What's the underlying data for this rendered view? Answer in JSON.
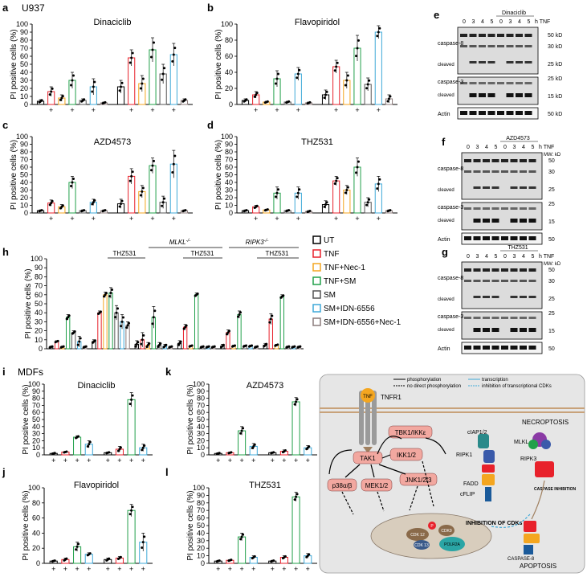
{
  "figure": {
    "panel_letters": [
      "a",
      "b",
      "c",
      "d",
      "e",
      "f",
      "g",
      "h",
      "i",
      "j",
      "k",
      "l",
      "m"
    ],
    "cell_line_label": "U937",
    "mdf_label": "MDFs",
    "plus": "+",
    "ylabel": "PI positive cells (%)",
    "colors": {
      "UT": "#000000",
      "TNF": "#e8212b",
      "TNF+Nec-1": "#f4a620",
      "TNF+SM": "#21a04a",
      "SM": "#555555",
      "SM+IDN-6556": "#3fa9d8",
      "SM+IDN-6556+Nec-1": "#8c7b7b"
    },
    "legend": [
      "UT",
      "TNF",
      "TNF+Nec-1",
      "TNF+SM",
      "SM",
      "SM+IDN-6556",
      "SM+IDN-6556+Nec-1"
    ],
    "h_labels": {
      "thz": "THZ531",
      "mlkl": "MLKL",
      "ripk3": "RIPK3",
      "ko": "-/-"
    }
  },
  "chart_data": [
    {
      "id": "a",
      "type": "bar",
      "title": "Dinaciclib",
      "ylabel": "PI positive cells (%)",
      "ylim": [
        0,
        100
      ],
      "yticks": [
        0,
        10,
        20,
        30,
        40,
        50,
        60,
        70,
        80,
        90,
        100
      ],
      "categories": [
        "UT",
        "TNF",
        "TNF+Nec-1",
        "TNF+SM",
        "SM",
        "SM+IDN-6556",
        "SM+IDN-6556+Nec-1"
      ],
      "groups": [
        {
          "values": [
            4,
            16,
            8,
            30,
            5,
            22,
            2
          ],
          "err": [
            2,
            6,
            4,
            10,
            2,
            10,
            1
          ]
        },
        {
          "values": [
            22,
            58,
            26,
            68,
            38,
            62,
            5
          ],
          "err": [
            8,
            10,
            10,
            15,
            12,
            14,
            2
          ]
        }
      ]
    },
    {
      "id": "b",
      "type": "bar",
      "title": "Flavopiridol",
      "ylabel": "PI positive cells (%)",
      "ylim": [
        0,
        100
      ],
      "yticks": [
        0,
        20,
        40,
        60,
        80,
        100
      ],
      "categories": [
        "UT",
        "TNF",
        "TNF+Nec-1",
        "TNF+SM",
        "SM",
        "SM+IDN-6556",
        "SM+IDN-6556+Nec-1"
      ],
      "groups": [
        {
          "values": [
            5,
            12,
            3,
            32,
            3,
            38,
            2
          ],
          "err": [
            2,
            4,
            1,
            10,
            1,
            8,
            1
          ]
        },
        {
          "values": [
            12,
            47,
            30,
            70,
            25,
            90,
            7
          ],
          "err": [
            6,
            8,
            10,
            16,
            8,
            8,
            5
          ]
        }
      ]
    },
    {
      "id": "c",
      "type": "bar",
      "title": "AZD4573",
      "ylabel": "PI positive cells (%)",
      "ylim": [
        0,
        100
      ],
      "yticks": [
        0,
        10,
        20,
        30,
        40,
        50,
        60,
        70,
        80,
        90,
        100
      ],
      "categories": [
        "UT",
        "TNF",
        "TNF+Nec-1",
        "TNF+SM",
        "SM",
        "SM+IDN-6556",
        "SM+IDN-6556+Nec-1"
      ],
      "groups": [
        {
          "values": [
            3,
            13,
            8,
            40,
            3,
            14,
            3
          ],
          "err": [
            1,
            4,
            3,
            8,
            1,
            4,
            1
          ]
        },
        {
          "values": [
            12,
            48,
            28,
            62,
            14,
            64,
            3
          ],
          "err": [
            6,
            10,
            8,
            10,
            8,
            18,
            1
          ]
        }
      ]
    },
    {
      "id": "d",
      "type": "bar",
      "title": "THZ531",
      "ylabel": "PI positive cells (%)",
      "ylim": [
        0,
        100
      ],
      "yticks": [
        0,
        10,
        20,
        30,
        40,
        50,
        60,
        70,
        80,
        90,
        100
      ],
      "categories": [
        "UT",
        "TNF",
        "TNF+Nec-1",
        "TNF+SM",
        "SM",
        "SM+IDN-6556",
        "SM+IDN-6556+Nec-1"
      ],
      "groups": [
        {
          "values": [
            3,
            8,
            4,
            26,
            3,
            26,
            2
          ],
          "err": [
            1,
            2,
            1,
            8,
            1,
            8,
            1
          ]
        },
        {
          "values": [
            11,
            42,
            30,
            60,
            14,
            38,
            3
          ],
          "err": [
            5,
            6,
            6,
            12,
            6,
            10,
            1
          ]
        }
      ]
    },
    {
      "id": "h",
      "type": "bar",
      "ylabel": "PI positive cells (%)",
      "ylim": [
        0,
        100
      ],
      "yticks": [
        0,
        10,
        20,
        30,
        40,
        50,
        60,
        70,
        80,
        90,
        100
      ],
      "categories": [
        "UT",
        "TNF",
        "TNF+Nec-1",
        "TNF+SM",
        "SM",
        "SM+IDN-6556",
        "SM+IDN-6556+Nec-1"
      ],
      "groups": [
        {
          "values": [
            2,
            8,
            2,
            35,
            18,
            8,
            2
          ],
          "err": [
            1,
            1,
            1,
            3,
            2,
            6,
            1
          ]
        },
        {
          "values": [
            8,
            40,
            60,
            62,
            40,
            30,
            26
          ],
          "err": [
            2,
            2,
            3,
            6,
            8,
            8,
            4
          ]
        },
        {
          "values": [
            5,
            10,
            4,
            35,
            4,
            3,
            2
          ],
          "err": [
            4,
            8,
            3,
            12,
            3,
            2,
            1
          ]
        },
        {
          "values": [
            6,
            24,
            3,
            60,
            2,
            2,
            2
          ],
          "err": [
            3,
            3,
            1,
            2,
            1,
            1,
            1
          ]
        },
        {
          "values": [
            3,
            18,
            3,
            38,
            3,
            3,
            2
          ],
          "err": [
            2,
            3,
            1,
            4,
            1,
            1,
            1
          ]
        },
        {
          "values": [
            4,
            33,
            4,
            58,
            2,
            2,
            2
          ],
          "err": [
            2,
            6,
            1,
            2,
            1,
            1,
            1
          ]
        }
      ]
    },
    {
      "id": "i",
      "type": "bar",
      "title": "Dinaciclib",
      "ylabel": "PI positive cells (%)",
      "ylim": [
        0,
        100
      ],
      "yticks": [
        0,
        10,
        20,
        30,
        40,
        50,
        60,
        70,
        80,
        90,
        100
      ],
      "categories": [
        "UT",
        "TNF",
        "TNF+SM",
        "SM+IDN-6556"
      ],
      "groups": [
        {
          "values": [
            2,
            4,
            25,
            15
          ],
          "err": [
            1,
            1,
            2,
            5
          ]
        },
        {
          "values": [
            3,
            8,
            78,
            10
          ],
          "err": [
            1,
            4,
            10,
            5
          ]
        }
      ]
    },
    {
      "id": "j",
      "type": "bar",
      "title": "Flavopiridol",
      "ylabel": "PI positive cells (%)",
      "ylim": [
        0,
        100
      ],
      "yticks": [
        0,
        20,
        40,
        60,
        80,
        100
      ],
      "categories": [
        "UT",
        "TNF",
        "TNF+SM",
        "SM+IDN-6556"
      ],
      "groups": [
        {
          "values": [
            3,
            5,
            22,
            12
          ],
          "err": [
            1,
            2,
            6,
            2
          ]
        },
        {
          "values": [
            5,
            7,
            70,
            28
          ],
          "err": [
            2,
            2,
            8,
            12
          ]
        }
      ]
    },
    {
      "id": "k",
      "type": "bar",
      "title": "AZD4573",
      "ylabel": "PI positive cells (%)",
      "ylim": [
        0,
        100
      ],
      "yticks": [
        0,
        10,
        20,
        30,
        40,
        50,
        60,
        70,
        80,
        90,
        100
      ],
      "categories": [
        "UT",
        "TNF",
        "TNF+SM",
        "SM+IDN-6556"
      ],
      "groups": [
        {
          "values": [
            2,
            3,
            34,
            12
          ],
          "err": [
            1,
            1,
            6,
            4
          ]
        },
        {
          "values": [
            3,
            5,
            75,
            10
          ],
          "err": [
            1,
            2,
            6,
            3
          ]
        }
      ]
    },
    {
      "id": "l",
      "type": "bar",
      "title": "THZ531",
      "ylabel": "PI positive cells (%)",
      "ylim": [
        0,
        100
      ],
      "yticks": [
        0,
        10,
        20,
        30,
        40,
        50,
        60,
        70,
        80,
        90,
        100
      ],
      "categories": [
        "UT",
        "TNF",
        "TNF+SM",
        "SM+IDN-6556"
      ],
      "groups": [
        {
          "values": [
            3,
            4,
            35,
            8
          ],
          "err": [
            1,
            1,
            5,
            2
          ]
        },
        {
          "values": [
            3,
            8,
            88,
            10
          ],
          "err": [
            1,
            2,
            6,
            3
          ]
        }
      ]
    }
  ],
  "blots": [
    {
      "id": "e",
      "drug": "Dinaciclib",
      "lanes": [
        "0",
        "3",
        "4",
        "5",
        "0",
        "3",
        "4",
        "5"
      ],
      "unit": "h",
      "tnf": "TNF",
      "labels": [
        "caspase-8",
        "cleaved",
        "caspase-3",
        "cleaved",
        "Actin"
      ],
      "mw": [
        "50 kD",
        "30 kD",
        "25 kD",
        "25 kD",
        "15 kD",
        "50 kD"
      ]
    },
    {
      "id": "f",
      "drug": "AZD4573",
      "lanes": [
        "0",
        "3",
        "4",
        "5",
        "0",
        "3",
        "4",
        "5"
      ],
      "unit": "h",
      "tnf": "TNF",
      "mwhead": "MW: kD",
      "labels": [
        "caspase-8",
        "cleaved",
        "caspase-3",
        "cleaved",
        "Actin"
      ],
      "mw": [
        "50",
        "30",
        "25",
        "25",
        "15",
        "50"
      ]
    },
    {
      "id": "g",
      "drug": "THZ531",
      "lanes": [
        "0",
        "3",
        "4",
        "5",
        "0",
        "3",
        "4",
        "5"
      ],
      "unit": "h",
      "tnf": "TNF",
      "mwhead": "MW: kD",
      "labels": [
        "caspase-8",
        "cleaved",
        "caspase-3",
        "cleaved",
        "Actin"
      ],
      "mw": [
        "50",
        "30",
        "25",
        "25",
        "15",
        "50"
      ]
    }
  ],
  "diagram": {
    "legend": {
      "phos": "phosphorylation",
      "nodirect": "no direct phosphorylation",
      "transcription": "transcription",
      "inhibition": "inhibition of transcriptional CDKs"
    },
    "tnf": "TNF",
    "tnfr1": "TNFR1",
    "necroptosis": "NECROPTOSIS",
    "apoptosis": "APOPTOSIS",
    "nodes": {
      "tbk1": "TBK1/IKKε",
      "tak1": "TAK1",
      "ikk": "IKK1/2",
      "p38": "p38α/β",
      "mek": "MEK1/2",
      "jnk": "JNK1/2/3",
      "ciap": "cIAP1/2",
      "ripk1": "RIPK1",
      "fadd": "FADD",
      "cflip": "cFLIP",
      "mlkl": "MLKL",
      "ripk3": "RIPK3",
      "casp_inhib": "CASPASE INHIBITION",
      "casp8": "CASPASE-8",
      "cdk12": "CDK 12",
      "cdk9": "CDK9",
      "cdk13": "CDK 13",
      "polr2a": "POLR2A",
      "inhib": "INHIBITION OF CDKs",
      "p": "P"
    }
  }
}
